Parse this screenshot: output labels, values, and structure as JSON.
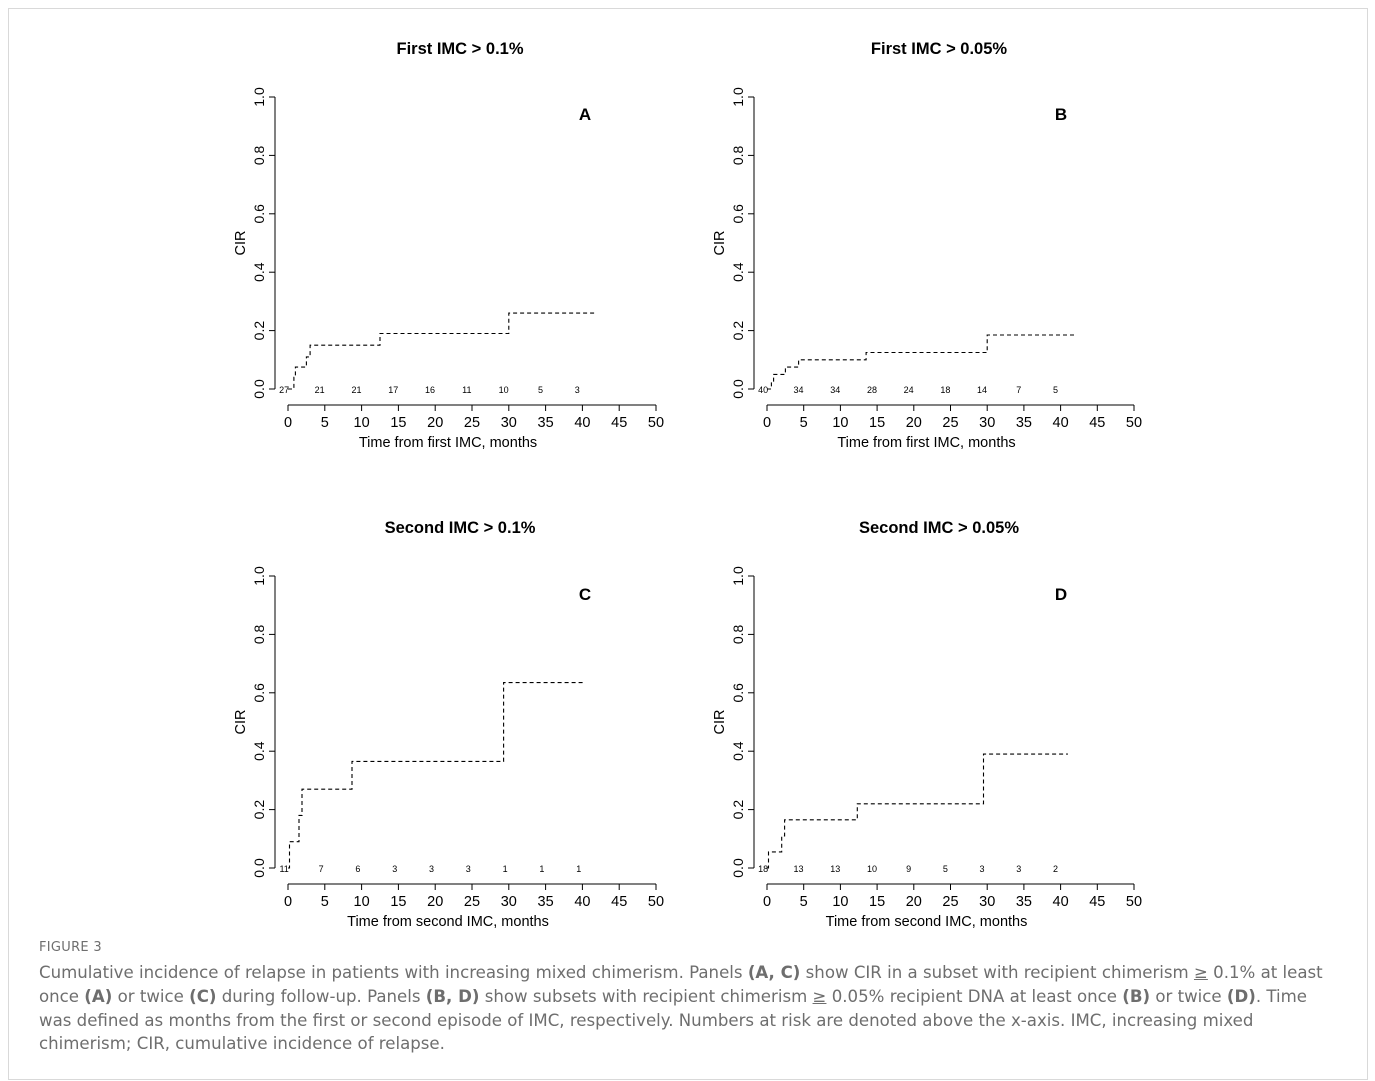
{
  "figure": {
    "label": "FIGURE 3",
    "caption_parts": [
      {
        "text": "Cumulative incidence of relapse in patients with increasing mixed chimerism. Panels ",
        "bold": false
      },
      {
        "text": "(A, C)",
        "bold": true
      },
      {
        "text": " show CIR in a subset with recipient chimerism ",
        "bold": false
      },
      {
        "text": "≥",
        "bold": false,
        "underline": true
      },
      {
        "text": " 0.1% at least once ",
        "bold": false
      },
      {
        "text": "(A)",
        "bold": true
      },
      {
        "text": " or twice ",
        "bold": false
      },
      {
        "text": "(C)",
        "bold": true
      },
      {
        "text": " during follow-up. Panels ",
        "bold": false
      },
      {
        "text": "(B, D)",
        "bold": true
      },
      {
        "text": " show subsets with recipient chimerism ",
        "bold": false
      },
      {
        "text": "≥",
        "bold": false,
        "underline": true
      },
      {
        "text": " 0.05% recipient DNA at least once ",
        "bold": false
      },
      {
        "text": "(B)",
        "bold": true
      },
      {
        "text": " or twice ",
        "bold": false
      },
      {
        "text": "(D)",
        "bold": true
      },
      {
        "text": ". Time was defined as months from the first or second episode of IMC, respectively. Numbers at risk are denoted above the x-axis. IMC, increasing mixed chimerism; CIR, cumulative incidence of relapse.",
        "bold": false
      }
    ]
  },
  "chart_data": [
    {
      "type": "line",
      "panel": "A",
      "title": "First IMC > 0.1%",
      "xlabel": "Time from first IMC, months",
      "ylabel": "CIR",
      "xlim": [
        0,
        50
      ],
      "ylim": [
        0,
        1
      ],
      "xticks": [
        "0",
        "5",
        "10",
        "15",
        "20",
        "25",
        "30",
        "35",
        "40",
        "45",
        "50"
      ],
      "yticks": [
        "0.0",
        "0.2",
        "0.4",
        "0.6",
        "0.8",
        "1.0"
      ],
      "line_style": "dashed step",
      "steps": [
        [
          0,
          0
        ],
        [
          0.8,
          0
        ],
        [
          0.8,
          0.04
        ],
        [
          1,
          0.04
        ],
        [
          1,
          0.075
        ],
        [
          2.5,
          0.075
        ],
        [
          2.5,
          0.11
        ],
        [
          3,
          0.11
        ],
        [
          3,
          0.15
        ],
        [
          12.5,
          0.15
        ],
        [
          12.5,
          0.19
        ],
        [
          30,
          0.19
        ],
        [
          30,
          0.26
        ],
        [
          42,
          0.26
        ]
      ],
      "at_risk": [
        {
          "x": -0.8,
          "n": "27"
        },
        {
          "x": 4.3,
          "n": "21"
        },
        {
          "x": 9.3,
          "n": "21"
        },
        {
          "x": 14.3,
          "n": "17"
        },
        {
          "x": 19.3,
          "n": "16"
        },
        {
          "x": 24.3,
          "n": "11"
        },
        {
          "x": 29.3,
          "n": "10"
        },
        {
          "x": 34.3,
          "n": "5"
        },
        {
          "x": 39.3,
          "n": "3"
        }
      ]
    },
    {
      "type": "line",
      "panel": "B",
      "title": "First IMC > 0.05%",
      "xlabel": "Time from first IMC, months",
      "ylabel": "CIR",
      "xlim": [
        0,
        50
      ],
      "ylim": [
        0,
        1
      ],
      "xticks": [
        "0",
        "5",
        "10",
        "15",
        "20",
        "25",
        "30",
        "35",
        "40",
        "45",
        "50"
      ],
      "yticks": [
        "0.0",
        "0.2",
        "0.4",
        "0.6",
        "0.8",
        "1.0"
      ],
      "line_style": "dashed step",
      "steps": [
        [
          0,
          0
        ],
        [
          0.6,
          0
        ],
        [
          0.6,
          0.025
        ],
        [
          0.9,
          0.025
        ],
        [
          0.9,
          0.05
        ],
        [
          2.5,
          0.05
        ],
        [
          2.5,
          0.075
        ],
        [
          4.3,
          0.075
        ],
        [
          4.3,
          0.1
        ],
        [
          13.5,
          0.1
        ],
        [
          13.5,
          0.125
        ],
        [
          30,
          0.125
        ],
        [
          30,
          0.185
        ],
        [
          42,
          0.185
        ]
      ],
      "at_risk": [
        {
          "x": -0.8,
          "n": "40"
        },
        {
          "x": 4.3,
          "n": "34"
        },
        {
          "x": 9.3,
          "n": "34"
        },
        {
          "x": 14.3,
          "n": "28"
        },
        {
          "x": 19.3,
          "n": "24"
        },
        {
          "x": 24.3,
          "n": "18"
        },
        {
          "x": 29.3,
          "n": "14"
        },
        {
          "x": 34.3,
          "n": "7"
        },
        {
          "x": 39.3,
          "n": "5"
        }
      ]
    },
    {
      "type": "line",
      "panel": "C",
      "title": "Second IMC > 0.1%",
      "xlabel": "Time from second IMC, months",
      "ylabel": "CIR",
      "xlim": [
        0,
        50
      ],
      "ylim": [
        0,
        1
      ],
      "xticks": [
        "0",
        "5",
        "10",
        "15",
        "20",
        "25",
        "30",
        "35",
        "40",
        "45",
        "50"
      ],
      "yticks": [
        "0.0",
        "0.2",
        "0.4",
        "0.6",
        "0.8",
        "1.0"
      ],
      "line_style": "dashed step",
      "steps": [
        [
          0,
          0
        ],
        [
          0.2,
          0
        ],
        [
          0.2,
          0.09
        ],
        [
          1.5,
          0.09
        ],
        [
          1.5,
          0.18
        ],
        [
          1.9,
          0.18
        ],
        [
          1.9,
          0.27
        ],
        [
          8.7,
          0.27
        ],
        [
          8.7,
          0.365
        ],
        [
          29.3,
          0.365
        ],
        [
          29.3,
          0.635
        ],
        [
          40.3,
          0.635
        ]
      ],
      "at_risk": [
        {
          "x": -0.8,
          "n": "11"
        },
        {
          "x": 4.5,
          "n": "7"
        },
        {
          "x": 9.5,
          "n": "6"
        },
        {
          "x": 14.5,
          "n": "3"
        },
        {
          "x": 19.5,
          "n": "3"
        },
        {
          "x": 24.5,
          "n": "3"
        },
        {
          "x": 29.5,
          "n": "1"
        },
        {
          "x": 34.5,
          "n": "1"
        },
        {
          "x": 39.5,
          "n": "1"
        }
      ]
    },
    {
      "type": "line",
      "panel": "D",
      "title": "Second IMC > 0.05%",
      "xlabel": "Time from second IMC, months",
      "ylabel": "CIR",
      "xlim": [
        0,
        50
      ],
      "ylim": [
        0,
        1
      ],
      "xticks": [
        "0",
        "5",
        "10",
        "15",
        "20",
        "25",
        "30",
        "35",
        "40",
        "45",
        "50"
      ],
      "yticks": [
        "0.0",
        "0.2",
        "0.4",
        "0.6",
        "0.8",
        "1.0"
      ],
      "line_style": "dashed step",
      "steps": [
        [
          0,
          0
        ],
        [
          0.2,
          0
        ],
        [
          0.2,
          0.055
        ],
        [
          2,
          0.055
        ],
        [
          2,
          0.11
        ],
        [
          2.4,
          0.11
        ],
        [
          2.4,
          0.165
        ],
        [
          12.3,
          0.165
        ],
        [
          12.3,
          0.22
        ],
        [
          29.5,
          0.22
        ],
        [
          29.5,
          0.39
        ],
        [
          41,
          0.39
        ]
      ],
      "at_risk": [
        {
          "x": -0.8,
          "n": "18"
        },
        {
          "x": 4.3,
          "n": "13"
        },
        {
          "x": 9.3,
          "n": "13"
        },
        {
          "x": 14.3,
          "n": "10"
        },
        {
          "x": 19.3,
          "n": "9"
        },
        {
          "x": 24.3,
          "n": "5"
        },
        {
          "x": 29.3,
          "n": "3"
        },
        {
          "x": 34.3,
          "n": "3"
        },
        {
          "x": 39.3,
          "n": "2"
        }
      ]
    }
  ]
}
